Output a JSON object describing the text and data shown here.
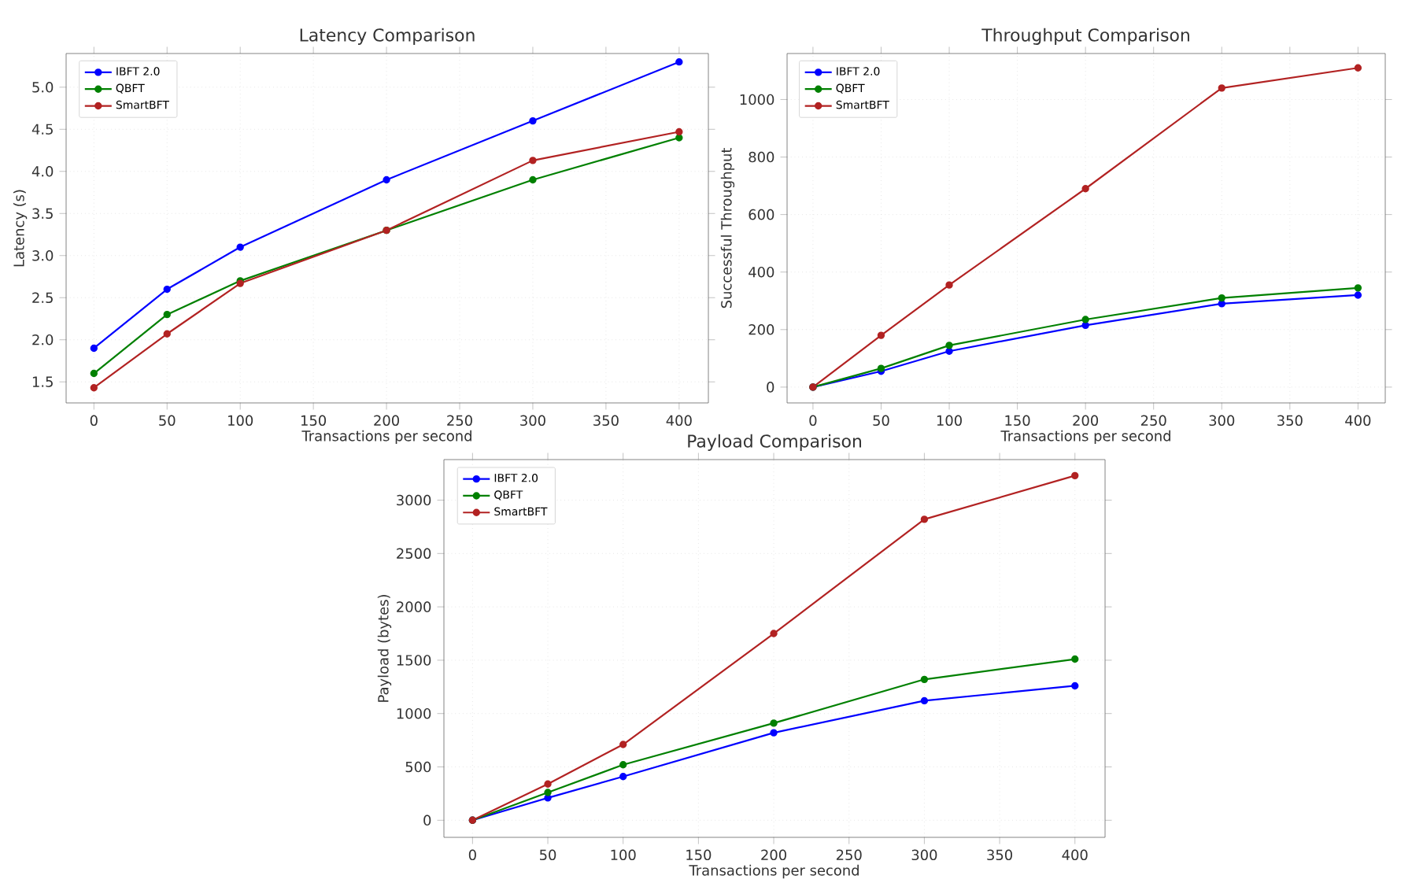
{
  "chart_data": [
    {
      "type": "line",
      "title": "Latency Comparison",
      "xlabel": "Transactions per second",
      "ylabel": "Latency (s)",
      "x": [
        0,
        50,
        100,
        200,
        300,
        400
      ],
      "series": [
        {
          "name": "IBFT 2.0",
          "color": "#0000ff",
          "values": [
            1.9,
            2.6,
            3.1,
            3.9,
            4.6,
            5.3
          ]
        },
        {
          "name": "QBFT",
          "color": "#008000",
          "values": [
            1.6,
            2.3,
            2.7,
            3.3,
            3.9,
            4.4
          ]
        },
        {
          "name": "SmartBFT",
          "color": "#b22222",
          "values": [
            1.43,
            2.07,
            2.67,
            3.3,
            4.13,
            4.47
          ]
        }
      ],
      "xlim": [
        -19,
        420
      ],
      "ylim": [
        1.25,
        5.4
      ],
      "xticks": [
        0,
        50,
        100,
        150,
        200,
        250,
        300,
        350,
        400
      ],
      "yticks": [
        1.5,
        {
          "value": 2,
          "label": "2.0"
        },
        2.5,
        {
          "value": 3,
          "label": "3.0"
        },
        3.5,
        {
          "value": 4,
          "label": "4.0"
        },
        4.5,
        {
          "value": 5,
          "label": "5.0"
        }
      ],
      "grid": true,
      "legend": "top left",
      "marker": "circle"
    },
    {
      "type": "line",
      "title": "Throughput Comparison",
      "xlabel": "Transactions per second",
      "ylabel": "Successful Throughput",
      "x": [
        0,
        50,
        100,
        200,
        300,
        400
      ],
      "series": [
        {
          "name": "IBFT 2.0",
          "color": "#0000ff",
          "values": [
            0,
            55,
            125,
            215,
            290,
            320
          ]
        },
        {
          "name": "QBFT",
          "color": "#008000",
          "values": [
            0,
            65,
            145,
            235,
            310,
            345
          ]
        },
        {
          "name": "SmartBFT",
          "color": "#b22222",
          "values": [
            0,
            180,
            355,
            690,
            1040,
            1110
          ]
        }
      ],
      "xlim": [
        -19,
        420
      ],
      "ylim": [
        -55,
        1160
      ],
      "xticks": [
        0,
        50,
        100,
        150,
        200,
        250,
        300,
        350,
        400
      ],
      "yticks": [
        0,
        200,
        400,
        600,
        800,
        1000
      ],
      "grid": true,
      "legend": "top left",
      "marker": "circle"
    },
    {
      "type": "line",
      "title": "Payload Comparison",
      "xlabel": "Transactions per second",
      "ylabel": "Payload (bytes)",
      "x": [
        0,
        50,
        100,
        200,
        300,
        400
      ],
      "series": [
        {
          "name": "IBFT 2.0",
          "color": "#0000ff",
          "values": [
            0,
            210,
            410,
            820,
            1120,
            1260
          ]
        },
        {
          "name": "QBFT",
          "color": "#008000",
          "values": [
            0,
            260,
            520,
            910,
            1320,
            1510
          ]
        },
        {
          "name": "SmartBFT",
          "color": "#b22222",
          "values": [
            0,
            340,
            710,
            1750,
            2820,
            3230
          ]
        }
      ],
      "xlim": [
        -19,
        420
      ],
      "ylim": [
        -160,
        3380
      ],
      "xticks": [
        0,
        50,
        100,
        150,
        200,
        250,
        300,
        350,
        400
      ],
      "yticks": [
        0,
        500,
        1000,
        1500,
        2000,
        2500,
        3000
      ],
      "grid": true,
      "legend": "top left",
      "marker": "circle"
    }
  ]
}
